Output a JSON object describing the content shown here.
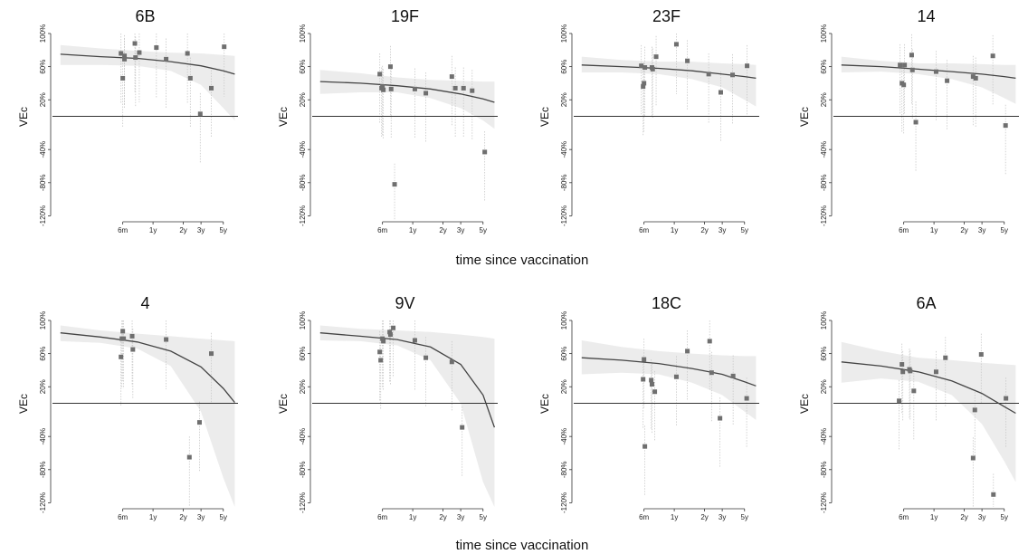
{
  "figure": {
    "xlabel_top": "time since vaccination",
    "xlabel_bottom": "time since vaccination"
  },
  "chart_data": [
    {
      "type": "scatter",
      "title": "6B",
      "xlabel": "",
      "ylabel": "VEc",
      "x_scale": "log",
      "xlim": [
        0.1,
        7
      ],
      "ylim": [
        -125,
        100
      ],
      "x_ticks": [
        0.5,
        1,
        2,
        3,
        5
      ],
      "x_tick_labels": [
        "6m",
        "1y",
        "2y",
        "3y",
        "5y"
      ],
      "y_ticks": [
        100,
        60,
        20,
        -40,
        -80,
        -120
      ],
      "y_tick_labels": [
        "100%",
        "60%",
        "20%",
        "-40%",
        "-80%",
        "-120%"
      ],
      "points": [
        {
          "x": 0.48,
          "y": 76
        },
        {
          "x": 0.5,
          "y": 46
        },
        {
          "x": 0.52,
          "y": 73
        },
        {
          "x": 0.52,
          "y": 69
        },
        {
          "x": 0.66,
          "y": 88
        },
        {
          "x": 0.67,
          "y": 71
        },
        {
          "x": 0.73,
          "y": 77
        },
        {
          "x": 1.08,
          "y": 83
        },
        {
          "x": 1.35,
          "y": 69
        },
        {
          "x": 2.2,
          "y": 76
        },
        {
          "x": 2.35,
          "y": 46
        },
        {
          "x": 2.95,
          "y": 3
        },
        {
          "x": 3.8,
          "y": 34
        },
        {
          "x": 5.1,
          "y": 84
        }
      ],
      "fit": {
        "x": [
          0.12,
          0.3,
          0.7,
          1.5,
          3,
          5,
          6.5
        ],
        "y": [
          75,
          72,
          70,
          66,
          61,
          55,
          51
        ]
      },
      "band": {
        "x": [
          0.12,
          0.3,
          0.7,
          1.5,
          3,
          5,
          6.5
        ],
        "lower": [
          62,
          62,
          61,
          55,
          38,
          10,
          -5
        ],
        "upper": [
          86,
          82,
          79,
          77,
          76,
          74,
          73
        ]
      }
    },
    {
      "type": "scatter",
      "title": "19F",
      "xlabel": "",
      "ylabel": "VEc",
      "x_scale": "log",
      "xlim": [
        0.1,
        7
      ],
      "ylim": [
        -125,
        100
      ],
      "x_ticks": [
        0.5,
        1,
        2,
        3,
        5
      ],
      "x_tick_labels": [
        "6m",
        "1y",
        "2y",
        "3y",
        "5y"
      ],
      "y_ticks": [
        100,
        60,
        20,
        -40,
        -80,
        -120
      ],
      "y_tick_labels": [
        "100%",
        "60%",
        "20%",
        "-40%",
        "-80%",
        "-120%"
      ],
      "points": [
        {
          "x": 0.47,
          "y": 51
        },
        {
          "x": 0.49,
          "y": 34
        },
        {
          "x": 0.5,
          "y": 36
        },
        {
          "x": 0.51,
          "y": 32
        },
        {
          "x": 0.6,
          "y": 60
        },
        {
          "x": 0.61,
          "y": 33
        },
        {
          "x": 0.66,
          "y": -82
        },
        {
          "x": 1.05,
          "y": 33
        },
        {
          "x": 1.35,
          "y": 28
        },
        {
          "x": 2.45,
          "y": 48
        },
        {
          "x": 2.65,
          "y": 34
        },
        {
          "x": 3.2,
          "y": 34
        },
        {
          "x": 3.9,
          "y": 31
        },
        {
          "x": 5.2,
          "y": -43
        }
      ],
      "fit": {
        "x": [
          0.12,
          0.3,
          0.7,
          1.5,
          3,
          5,
          6.5
        ],
        "y": [
          42,
          40,
          37,
          33,
          27,
          21,
          17
        ]
      },
      "band": {
        "x": [
          0.12,
          0.3,
          0.7,
          1.5,
          3,
          5,
          6.5
        ],
        "lower": [
          27,
          29,
          29,
          22,
          10,
          -5,
          -15
        ],
        "upper": [
          56,
          52,
          47,
          44,
          43,
          42,
          42
        ]
      }
    },
    {
      "type": "scatter",
      "title": "23F",
      "xlabel": "",
      "ylabel": "VEc",
      "x_scale": "log",
      "xlim": [
        0.1,
        7
      ],
      "ylim": [
        -125,
        100
      ],
      "x_ticks": [
        0.5,
        1,
        2,
        3,
        5
      ],
      "x_tick_labels": [
        "6m",
        "1y",
        "2y",
        "3y",
        "5y"
      ],
      "y_ticks": [
        100,
        60,
        20,
        -40,
        -80,
        -120
      ],
      "y_tick_labels": [
        "100%",
        "60%",
        "20%",
        "-40%",
        "-80%",
        "-120%"
      ],
      "points": [
        {
          "x": 0.47,
          "y": 61
        },
        {
          "x": 0.49,
          "y": 36
        },
        {
          "x": 0.5,
          "y": 40
        },
        {
          "x": 0.51,
          "y": 59
        },
        {
          "x": 0.6,
          "y": 59
        },
        {
          "x": 0.61,
          "y": 57
        },
        {
          "x": 0.66,
          "y": 72
        },
        {
          "x": 1.05,
          "y": 87
        },
        {
          "x": 1.35,
          "y": 67
        },
        {
          "x": 2.2,
          "y": 51
        },
        {
          "x": 2.9,
          "y": 29
        },
        {
          "x": 3.8,
          "y": 50
        },
        {
          "x": 5.3,
          "y": 61
        }
      ],
      "fit": {
        "x": [
          0.12,
          0.3,
          0.7,
          1.5,
          3,
          5,
          6.5
        ],
        "y": [
          62,
          60,
          58,
          55,
          51,
          48,
          46
        ]
      },
      "band": {
        "x": [
          0.12,
          0.3,
          0.7,
          1.5,
          3,
          5,
          6.5
        ],
        "lower": [
          53,
          53,
          51,
          45,
          35,
          20,
          12
        ],
        "upper": [
          72,
          68,
          66,
          66,
          64,
          63,
          62
        ]
      }
    },
    {
      "type": "scatter",
      "title": "14",
      "xlabel": "",
      "ylabel": "VEc",
      "x_scale": "log",
      "xlim": [
        0.1,
        7
      ],
      "ylim": [
        -125,
        100
      ],
      "x_ticks": [
        0.5,
        1,
        2,
        3,
        5
      ],
      "x_tick_labels": [
        "6m",
        "1y",
        "2y",
        "3y",
        "5y"
      ],
      "y_ticks": [
        100,
        60,
        20,
        -40,
        -80,
        -120
      ],
      "y_tick_labels": [
        "100%",
        "60%",
        "20%",
        "-40%",
        "-80%",
        "-120%"
      ],
      "points": [
        {
          "x": 0.46,
          "y": 62
        },
        {
          "x": 0.48,
          "y": 40
        },
        {
          "x": 0.5,
          "y": 38
        },
        {
          "x": 0.51,
          "y": 62
        },
        {
          "x": 0.6,
          "y": 74
        },
        {
          "x": 0.61,
          "y": 56
        },
        {
          "x": 0.66,
          "y": -7
        },
        {
          "x": 1.05,
          "y": 54
        },
        {
          "x": 1.35,
          "y": 43
        },
        {
          "x": 2.45,
          "y": 48
        },
        {
          "x": 2.6,
          "y": 46
        },
        {
          "x": 3.85,
          "y": 73
        },
        {
          "x": 5.15,
          "y": -11
        }
      ],
      "fit": {
        "x": [
          0.12,
          0.3,
          0.7,
          1.5,
          3,
          5,
          6.5
        ],
        "y": [
          62,
          60,
          57,
          54,
          51,
          48,
          46
        ]
      },
      "band": {
        "x": [
          0.12,
          0.3,
          0.7,
          1.5,
          3,
          5,
          6.5
        ],
        "lower": [
          53,
          54,
          51,
          45,
          35,
          22,
          15
        ],
        "upper": [
          72,
          67,
          64,
          64,
          63,
          62,
          62
        ]
      }
    },
    {
      "type": "scatter",
      "title": "4",
      "xlabel": "",
      "ylabel": "VEc",
      "x_scale": "log",
      "xlim": [
        0.1,
        7
      ],
      "ylim": [
        -125,
        100
      ],
      "x_ticks": [
        0.5,
        1,
        2,
        3,
        5
      ],
      "x_tick_labels": [
        "6m",
        "1y",
        "2y",
        "3y",
        "5y"
      ],
      "y_ticks": [
        100,
        60,
        20,
        -40,
        -80,
        -120
      ],
      "y_tick_labels": [
        "100%",
        "60%",
        "20%",
        "-40%",
        "-80%",
        "-120%"
      ],
      "points": [
        {
          "x": 0.48,
          "y": 56
        },
        {
          "x": 0.49,
          "y": 78
        },
        {
          "x": 0.5,
          "y": 87
        },
        {
          "x": 0.51,
          "y": 78
        },
        {
          "x": 0.62,
          "y": 81
        },
        {
          "x": 0.63,
          "y": 65
        },
        {
          "x": 1.35,
          "y": 77
        },
        {
          "x": 2.3,
          "y": -65
        },
        {
          "x": 2.9,
          "y": -23
        },
        {
          "x": 3.8,
          "y": 60
        }
      ],
      "fit": {
        "x": [
          0.12,
          0.3,
          0.7,
          1.5,
          3,
          5,
          6.5
        ],
        "y": [
          85,
          80,
          74,
          63,
          44,
          18,
          1
        ]
      },
      "band": {
        "x": [
          0.12,
          0.3,
          0.7,
          1.5,
          3,
          5,
          6.5
        ],
        "lower": [
          75,
          73,
          66,
          45,
          -10,
          -90,
          -125
        ],
        "upper": [
          94,
          88,
          84,
          81,
          78,
          76,
          75
        ]
      }
    },
    {
      "type": "scatter",
      "title": "9V",
      "xlabel": "",
      "ylabel": "VEc",
      "x_scale": "log",
      "xlim": [
        0.1,
        7
      ],
      "ylim": [
        -125,
        100
      ],
      "x_ticks": [
        0.5,
        1,
        2,
        3,
        5
      ],
      "x_tick_labels": [
        "6m",
        "1y",
        "2y",
        "3y",
        "5y"
      ],
      "y_ticks": [
        100,
        60,
        20,
        -40,
        -80,
        -120
      ],
      "y_tick_labels": [
        "100%",
        "60%",
        "20%",
        "-40%",
        "-80%",
        "-120%"
      ],
      "points": [
        {
          "x": 0.47,
          "y": 62
        },
        {
          "x": 0.48,
          "y": 52
        },
        {
          "x": 0.5,
          "y": 78
        },
        {
          "x": 0.51,
          "y": 75
        },
        {
          "x": 0.59,
          "y": 86
        },
        {
          "x": 0.6,
          "y": 83
        },
        {
          "x": 0.64,
          "y": 91
        },
        {
          "x": 1.05,
          "y": 76
        },
        {
          "x": 1.35,
          "y": 55
        },
        {
          "x": 2.45,
          "y": 50
        },
        {
          "x": 3.1,
          "y": -29
        }
      ],
      "fit": {
        "x": [
          0.12,
          0.3,
          0.7,
          1.5,
          3,
          5,
          6.5
        ],
        "y": [
          85,
          81,
          77,
          68,
          47,
          10,
          -29
        ]
      },
      "band": {
        "x": [
          0.12,
          0.3,
          0.7,
          1.5,
          3,
          5,
          6.5
        ],
        "lower": [
          76,
          75,
          70,
          52,
          0,
          -95,
          -125
        ],
        "upper": [
          94,
          90,
          88,
          86,
          83,
          80,
          78
        ]
      }
    },
    {
      "type": "scatter",
      "title": "18C",
      "xlabel": "",
      "ylabel": "VEc",
      "x_scale": "log",
      "xlim": [
        0.1,
        7
      ],
      "ylim": [
        -125,
        100
      ],
      "x_ticks": [
        0.5,
        1,
        2,
        3,
        5
      ],
      "x_tick_labels": [
        "6m",
        "1y",
        "2y",
        "3y",
        "5y"
      ],
      "y_ticks": [
        100,
        60,
        20,
        -40,
        -80,
        -120
      ],
      "y_tick_labels": [
        "100%",
        "60%",
        "20%",
        "-40%",
        "-80%",
        "-120%"
      ],
      "points": [
        {
          "x": 0.49,
          "y": 29
        },
        {
          "x": 0.5,
          "y": 53
        },
        {
          "x": 0.51,
          "y": -52
        },
        {
          "x": 0.59,
          "y": 28
        },
        {
          "x": 0.6,
          "y": 23
        },
        {
          "x": 0.64,
          "y": 14
        },
        {
          "x": 1.05,
          "y": 32
        },
        {
          "x": 1.35,
          "y": 63
        },
        {
          "x": 2.25,
          "y": 75
        },
        {
          "x": 2.35,
          "y": 37
        },
        {
          "x": 2.85,
          "y": -18
        },
        {
          "x": 3.85,
          "y": 33
        },
        {
          "x": 5.25,
          "y": 6
        }
      ],
      "fit": {
        "x": [
          0.12,
          0.3,
          0.7,
          1.5,
          3,
          5,
          6.5
        ],
        "y": [
          55,
          52,
          48,
          42,
          35,
          26,
          21
        ]
      },
      "band": {
        "x": [
          0.12,
          0.3,
          0.7,
          1.5,
          3,
          5,
          6.5
        ],
        "lower": [
          35,
          37,
          35,
          25,
          10,
          -10,
          -20
        ],
        "upper": [
          76,
          68,
          63,
          60,
          58,
          57,
          57
        ]
      }
    },
    {
      "type": "scatter",
      "title": "6A",
      "xlabel": "",
      "ylabel": "VEc",
      "x_scale": "log",
      "xlim": [
        0.1,
        7
      ],
      "ylim": [
        -125,
        100
      ],
      "x_ticks": [
        0.5,
        1,
        2,
        3,
        5
      ],
      "x_tick_labels": [
        "6m",
        "1y",
        "2y",
        "3y",
        "5y"
      ],
      "y_ticks": [
        100,
        60,
        20,
        -40,
        -80,
        -120
      ],
      "y_tick_labels": [
        "100%",
        "60%",
        "20%",
        "-40%",
        "-80%",
        "-120%"
      ],
      "points": [
        {
          "x": 0.45,
          "y": 3
        },
        {
          "x": 0.48,
          "y": 47
        },
        {
          "x": 0.49,
          "y": 38
        },
        {
          "x": 0.57,
          "y": 41
        },
        {
          "x": 0.58,
          "y": 39
        },
        {
          "x": 0.63,
          "y": 15
        },
        {
          "x": 1.05,
          "y": 38
        },
        {
          "x": 1.3,
          "y": 55
        },
        {
          "x": 2.45,
          "y": -66
        },
        {
          "x": 2.55,
          "y": -8
        },
        {
          "x": 2.95,
          "y": 59
        },
        {
          "x": 3.9,
          "y": -110
        },
        {
          "x": 5.2,
          "y": 6
        }
      ],
      "fit": {
        "x": [
          0.12,
          0.3,
          0.7,
          1.5,
          3,
          5,
          6.5
        ],
        "y": [
          50,
          45,
          38,
          27,
          12,
          -4,
          -12
        ]
      },
      "band": {
        "x": [
          0.12,
          0.3,
          0.7,
          1.5,
          3,
          5,
          6.5
        ],
        "lower": [
          25,
          30,
          26,
          10,
          -25,
          -70,
          -95
        ],
        "upper": [
          74,
          63,
          55,
          52,
          49,
          47,
          46
        ]
      }
    }
  ]
}
